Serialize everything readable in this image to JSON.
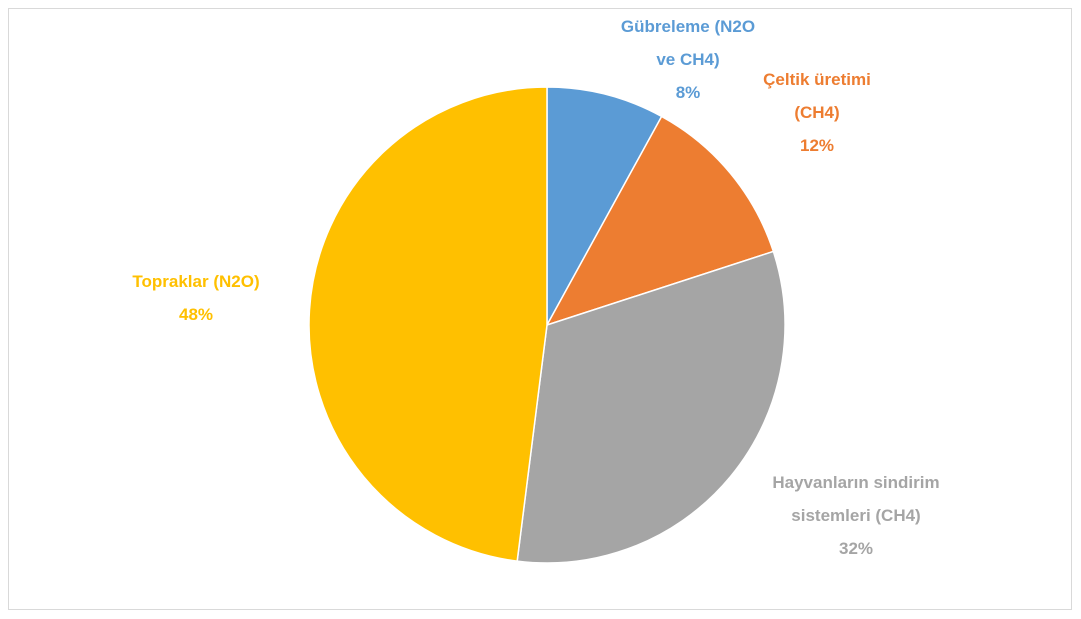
{
  "chart_data": {
    "type": "pie",
    "categories": [
      "Gübreleme (N2O ve CH4)",
      "Çeltik üretimi (CH4)",
      "Hayvanların sindirim sistemleri (CH4)",
      "Topraklar (N2O)"
    ],
    "values": [
      8,
      12,
      32,
      48
    ],
    "value_labels": [
      "8%",
      "12%",
      "32%",
      "48%"
    ],
    "colors": [
      "#5b9bd5",
      "#ed7d31",
      "#a5a5a5",
      "#ffc000"
    ]
  }
}
